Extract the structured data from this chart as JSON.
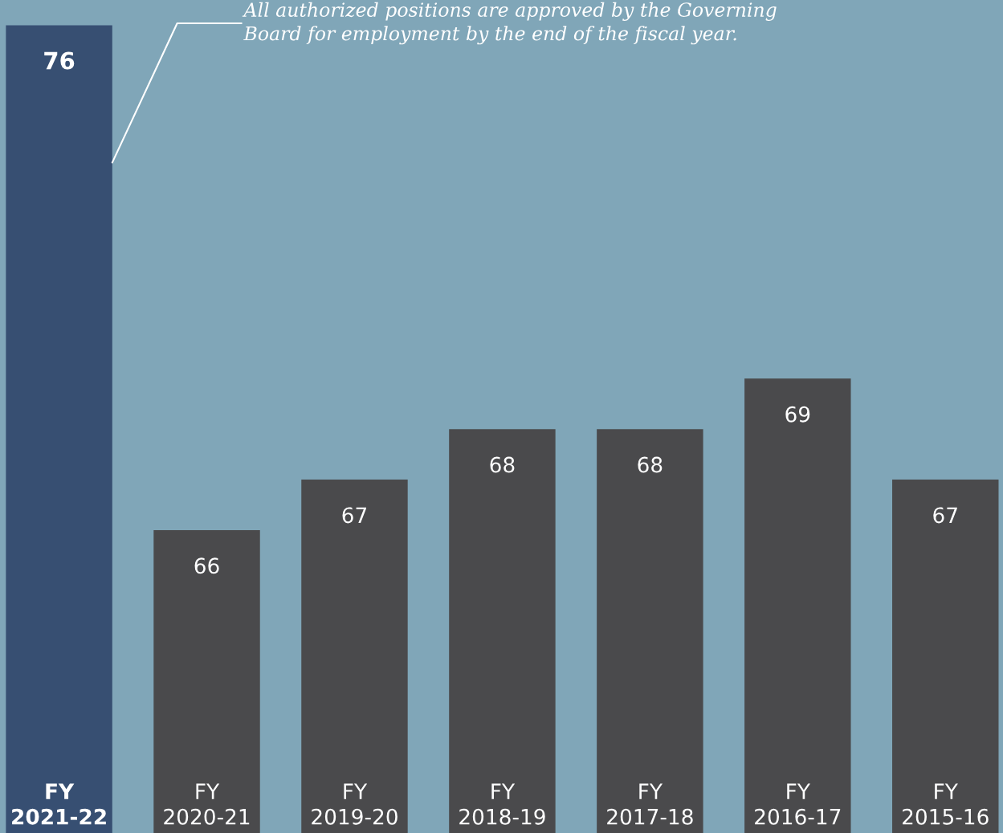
{
  "chart_data": {
    "type": "bar",
    "categories": [
      "FY\n2021-22",
      "FY\n2020-21",
      "FY\n2019-20",
      "FY\n2018-19",
      "FY\n2017-18",
      "FY\n2016-17",
      "FY\n2015-16"
    ],
    "values": [
      76,
      66,
      67,
      68,
      68,
      69,
      67
    ],
    "colors": [
      "#374f72",
      "#4a4a4c",
      "#4a4a4c",
      "#4a4a4c",
      "#4a4a4c",
      "#4a4a4c",
      "#4a4a4c"
    ],
    "ylim": [
      60,
      76.5
    ],
    "data_labels": true,
    "annotations": [
      "All authorized positions are approved by the Governing\nBoard for employment by the end of the fiscal year."
    ]
  }
}
